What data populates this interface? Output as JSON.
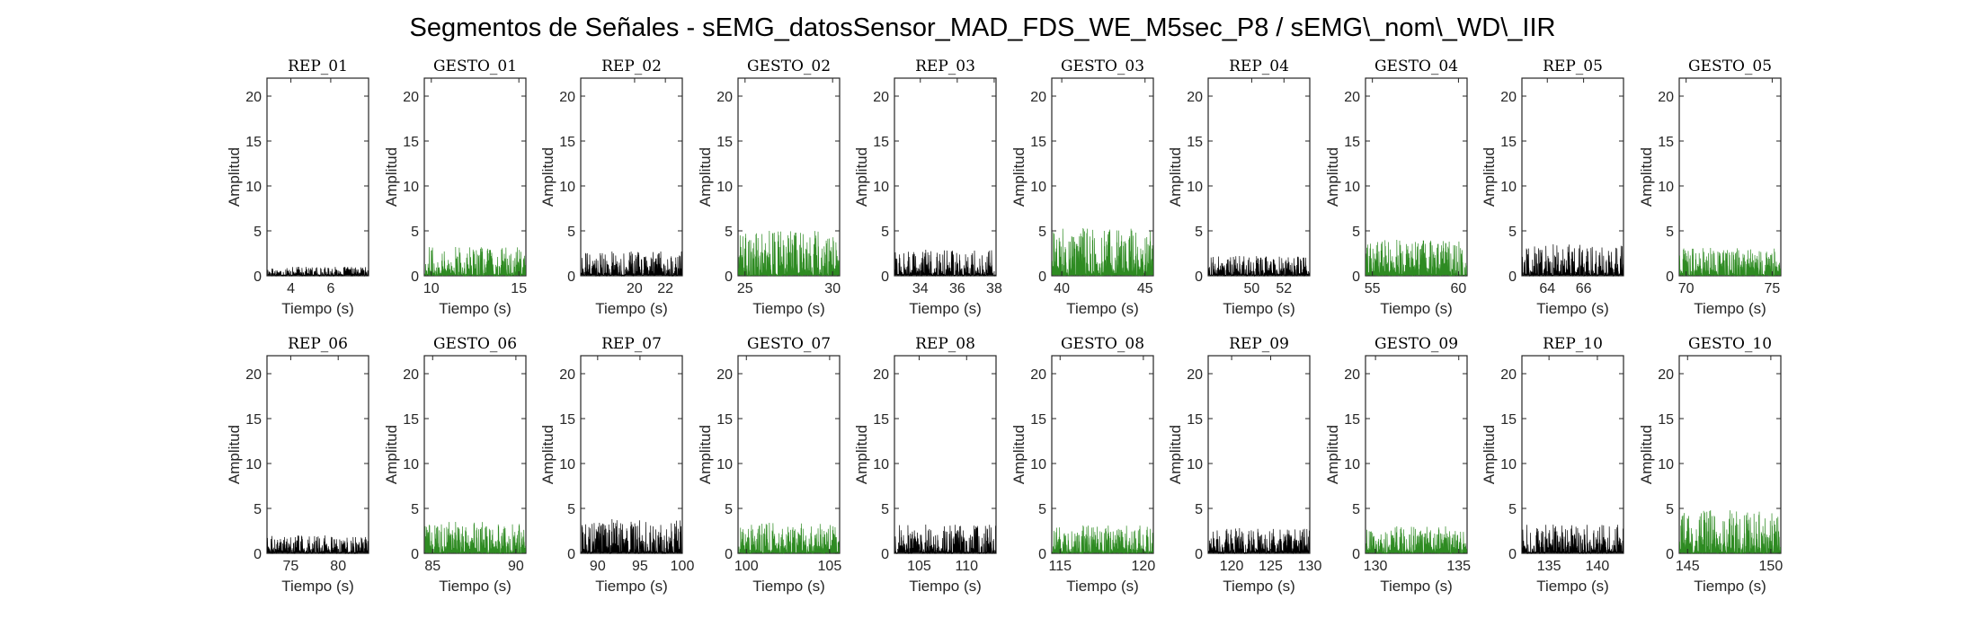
{
  "figure_title": "Segmentos de Señales - sEMG_datosSensor_MAD_FDS_WE_M5sec_P8 / sEMG\\_nom\\_WD\\_IIR",
  "colors": {
    "rep": "#000000",
    "gesto": "#2e8b22",
    "axis": "#262626"
  },
  "chart_data": [
    {
      "type": "line",
      "title": "REP_01",
      "xlabel": "Tiempo (s)",
      "ylabel": "Amplitud",
      "xlim": [
        2.8,
        7.9
      ],
      "ylim": [
        0,
        22
      ],
      "xticks": [
        4,
        6
      ],
      "yticks": [
        0,
        5,
        10,
        15,
        20
      ],
      "series": [
        {
          "color": "#000000",
          "amplitude_range": [
            0,
            1
          ]
        }
      ]
    },
    {
      "type": "line",
      "title": "GESTO_01",
      "xlabel": "Tiempo (s)",
      "ylabel": "Amplitud",
      "xlim": [
        9.6,
        15.4
      ],
      "ylim": [
        0,
        22
      ],
      "xticks": [
        10,
        15
      ],
      "yticks": [
        0,
        5,
        10,
        15,
        20
      ],
      "series": [
        {
          "color": "#2e8b22",
          "amplitude_range": [
            0,
            3.2
          ]
        }
      ]
    },
    {
      "type": "line",
      "title": "REP_02",
      "xlabel": "Tiempo (s)",
      "ylabel": "Amplitud",
      "xlim": [
        16.5,
        23.1
      ],
      "ylim": [
        0,
        22
      ],
      "xticks": [
        20,
        22
      ],
      "yticks": [
        0,
        5,
        10,
        15,
        20
      ],
      "series": [
        {
          "color": "#000000",
          "amplitude_range": [
            0,
            2.7
          ]
        }
      ]
    },
    {
      "type": "line",
      "title": "GESTO_02",
      "xlabel": "Tiempo (s)",
      "ylabel": "Amplitud",
      "xlim": [
        24.6,
        30.4
      ],
      "ylim": [
        0,
        22
      ],
      "xticks": [
        25,
        30
      ],
      "yticks": [
        0,
        5,
        10,
        15,
        20
      ],
      "series": [
        {
          "color": "#2e8b22",
          "amplitude_range": [
            0,
            5
          ]
        }
      ]
    },
    {
      "type": "line",
      "title": "REP_03",
      "xlabel": "Tiempo (s)",
      "ylabel": "Amplitud",
      "xlim": [
        32.6,
        38.1
      ],
      "ylim": [
        0,
        22
      ],
      "xticks": [
        34,
        36,
        38
      ],
      "yticks": [
        0,
        5,
        10,
        15,
        20
      ],
      "series": [
        {
          "color": "#000000",
          "amplitude_range": [
            0,
            2.9
          ]
        }
      ]
    },
    {
      "type": "line",
      "title": "GESTO_03",
      "xlabel": "Tiempo (s)",
      "ylabel": "Amplitud",
      "xlim": [
        39.4,
        45.5
      ],
      "ylim": [
        0,
        22
      ],
      "xticks": [
        40,
        45
      ],
      "yticks": [
        0,
        5,
        10,
        15,
        20
      ],
      "series": [
        {
          "color": "#2e8b22",
          "amplitude_range": [
            0,
            5.3
          ]
        }
      ]
    },
    {
      "type": "line",
      "title": "REP_04",
      "xlabel": "Tiempo (s)",
      "ylabel": "Amplitud",
      "xlim": [
        47.3,
        53.6
      ],
      "ylim": [
        0,
        22
      ],
      "xticks": [
        50,
        52
      ],
      "yticks": [
        0,
        5,
        10,
        15,
        20
      ],
      "series": [
        {
          "color": "#000000",
          "amplitude_range": [
            0,
            2.2
          ]
        }
      ]
    },
    {
      "type": "line",
      "title": "GESTO_04",
      "xlabel": "Tiempo (s)",
      "ylabel": "Amplitud",
      "xlim": [
        54.6,
        60.5
      ],
      "ylim": [
        0,
        22
      ],
      "xticks": [
        55,
        60
      ],
      "yticks": [
        0,
        5,
        10,
        15,
        20
      ],
      "series": [
        {
          "color": "#2e8b22",
          "amplitude_range": [
            0,
            4
          ]
        }
      ]
    },
    {
      "type": "line",
      "title": "REP_05",
      "xlabel": "Tiempo (s)",
      "ylabel": "Amplitud",
      "xlim": [
        62.6,
        68.2
      ],
      "ylim": [
        0,
        22
      ],
      "xticks": [
        64,
        66
      ],
      "yticks": [
        0,
        5,
        10,
        15,
        20
      ],
      "series": [
        {
          "color": "#000000",
          "amplitude_range": [
            0,
            3.5
          ]
        }
      ]
    },
    {
      "type": "line",
      "title": "GESTO_05",
      "xlabel": "Tiempo (s)",
      "ylabel": "Amplitud",
      "xlim": [
        69.6,
        75.5
      ],
      "ylim": [
        0,
        22
      ],
      "xticks": [
        70,
        75
      ],
      "yticks": [
        0,
        5,
        10,
        15,
        20
      ],
      "series": [
        {
          "color": "#2e8b22",
          "amplitude_range": [
            0,
            3.1
          ]
        }
      ]
    },
    {
      "type": "line",
      "title": "REP_06",
      "xlabel": "Tiempo (s)",
      "ylabel": "Amplitud",
      "xlim": [
        72.5,
        83.2
      ],
      "ylim": [
        0,
        22
      ],
      "xticks": [
        75,
        80
      ],
      "yticks": [
        0,
        5,
        10,
        15,
        20
      ],
      "series": [
        {
          "color": "#000000",
          "amplitude_range": [
            0,
            2
          ]
        }
      ]
    },
    {
      "type": "line",
      "title": "GESTO_06",
      "xlabel": "Tiempo (s)",
      "ylabel": "Amplitud",
      "xlim": [
        84.5,
        90.6
      ],
      "ylim": [
        0,
        22
      ],
      "xticks": [
        85,
        90
      ],
      "yticks": [
        0,
        5,
        10,
        15,
        20
      ],
      "series": [
        {
          "color": "#2e8b22",
          "amplitude_range": [
            0,
            3.5
          ]
        }
      ]
    },
    {
      "type": "line",
      "title": "REP_07",
      "xlabel": "Tiempo (s)",
      "ylabel": "Amplitud",
      "xlim": [
        88,
        100
      ],
      "ylim": [
        0,
        22
      ],
      "xticks": [
        90,
        95,
        100
      ],
      "yticks": [
        0,
        5,
        10,
        15,
        20
      ],
      "series": [
        {
          "color": "#000000",
          "amplitude_range": [
            0,
            3.8
          ]
        }
      ]
    },
    {
      "type": "line",
      "title": "GESTO_07",
      "xlabel": "Tiempo (s)",
      "ylabel": "Amplitud",
      "xlim": [
        99.5,
        105.6
      ],
      "ylim": [
        0,
        22
      ],
      "xticks": [
        100,
        105
      ],
      "yticks": [
        0,
        5,
        10,
        15,
        20
      ],
      "series": [
        {
          "color": "#2e8b22",
          "amplitude_range": [
            0,
            3.4
          ]
        }
      ]
    },
    {
      "type": "line",
      "title": "REP_08",
      "xlabel": "Tiempo (s)",
      "ylabel": "Amplitud",
      "xlim": [
        102.4,
        113.1
      ],
      "ylim": [
        0,
        22
      ],
      "xticks": [
        105,
        110
      ],
      "yticks": [
        0,
        5,
        10,
        15,
        20
      ],
      "series": [
        {
          "color": "#000000",
          "amplitude_range": [
            0,
            3.2
          ]
        }
      ]
    },
    {
      "type": "line",
      "title": "GESTO_08",
      "xlabel": "Tiempo (s)",
      "ylabel": "Amplitud",
      "xlim": [
        114.5,
        120.6
      ],
      "ylim": [
        0,
        22
      ],
      "xticks": [
        115,
        120
      ],
      "yticks": [
        0,
        5,
        10,
        15,
        20
      ],
      "series": [
        {
          "color": "#2e8b22",
          "amplitude_range": [
            0,
            3.1
          ]
        }
      ]
    },
    {
      "type": "line",
      "title": "REP_09",
      "xlabel": "Tiempo (s)",
      "ylabel": "Amplitud",
      "xlim": [
        117,
        130
      ],
      "ylim": [
        0,
        22
      ],
      "xticks": [
        120,
        125,
        130
      ],
      "yticks": [
        0,
        5,
        10,
        15,
        20
      ],
      "series": [
        {
          "color": "#000000",
          "amplitude_range": [
            0,
            2.8
          ]
        }
      ]
    },
    {
      "type": "line",
      "title": "GESTO_09",
      "xlabel": "Tiempo (s)",
      "ylabel": "Amplitud",
      "xlim": [
        129.4,
        135.5
      ],
      "ylim": [
        0,
        22
      ],
      "xticks": [
        130,
        135
      ],
      "yticks": [
        0,
        5,
        10,
        15,
        20
      ],
      "series": [
        {
          "color": "#2e8b22",
          "amplitude_range": [
            0,
            3
          ]
        }
      ]
    },
    {
      "type": "line",
      "title": "REP_10",
      "xlabel": "Tiempo (s)",
      "ylabel": "Amplitud",
      "xlim": [
        132.2,
        142.7
      ],
      "ylim": [
        0,
        22
      ],
      "xticks": [
        135,
        140
      ],
      "yticks": [
        0,
        5,
        10,
        15,
        20
      ],
      "series": [
        {
          "color": "#000000",
          "amplitude_range": [
            0,
            3.2
          ]
        }
      ]
    },
    {
      "type": "line",
      "title": "GESTO_10",
      "xlabel": "Tiempo (s)",
      "ylabel": "Amplitud",
      "xlim": [
        144.5,
        150.6
      ],
      "ylim": [
        0,
        22
      ],
      "xticks": [
        145,
        150
      ],
      "yticks": [
        0,
        5,
        10,
        15,
        20
      ],
      "series": [
        {
          "color": "#2e8b22",
          "amplitude_range": [
            0,
            4.8
          ]
        }
      ]
    }
  ]
}
